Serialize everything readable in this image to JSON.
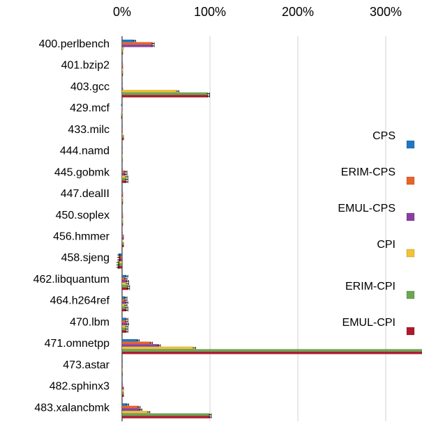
{
  "chart_data": {
    "type": "bar",
    "orientation": "horizontal",
    "xlim": [
      0,
      3.3
    ],
    "x_ticks": [
      {
        "value": 0,
        "label": "0%"
      },
      {
        "value": 1,
        "label": "100%"
      },
      {
        "value": 2,
        "label": "200%"
      },
      {
        "value": 3,
        "label": "300%"
      }
    ],
    "categories": [
      "400.perlbench",
      "401.bzip2",
      "403.gcc",
      "429.mcf",
      "433.milc",
      "444.namd",
      "445.gobmk",
      "447.dealII",
      "450.soplex",
      "456.hmmer",
      "458.sjeng",
      "462.libquantum",
      "464.h264ref",
      "470.lbm",
      "471.omnetpp",
      "473.astar",
      "482.sphinx3",
      "483.xalancbmk"
    ],
    "legend_position": "right",
    "series": [
      {
        "name": "CPS",
        "color": "#1f77c4",
        "values": [
          0.14,
          0.005,
          0.005,
          -0.01,
          0.0,
          0.0,
          0.005,
          0.005,
          0.005,
          0.005,
          -0.04,
          0.05,
          0.04,
          0.05,
          0.18,
          0.0,
          0.005,
          0.06
        ]
      },
      {
        "name": "ERIM-CPS",
        "color": "#e8642a",
        "values": [
          0.35,
          0.01,
          0.005,
          -0.005,
          0.005,
          0.0,
          0.04,
          0.01,
          0.01,
          0.02,
          -0.04,
          0.04,
          0.04,
          0.05,
          0.33,
          0.005,
          0.01,
          0.19
        ]
      },
      {
        "name": "EMUL-CPS",
        "color": "#8a3fa0",
        "values": [
          0.35,
          0.01,
          0.01,
          -0.005,
          0.005,
          0.0,
          0.04,
          0.01,
          0.01,
          0.02,
          -0.04,
          0.06,
          0.05,
          0.06,
          0.42,
          0.005,
          0.02,
          0.21
        ]
      },
      {
        "name": "CPI",
        "color": "#f2c233",
        "values": [
          0.02,
          0.01,
          0.63,
          0.005,
          0.01,
          0.005,
          0.05,
          0.01,
          0.01,
          0.01,
          -0.05,
          0.06,
          0.04,
          0.05,
          0.82,
          0.005,
          0.02,
          0.3
        ]
      },
      {
        "name": "ERIM-CPI",
        "color": "#6aa84f",
        "values": [
          0.01,
          0.01,
          0.98,
          -0.01,
          0.02,
          0.0,
          0.05,
          0.01,
          0.01,
          0.02,
          -0.05,
          0.07,
          0.05,
          0.05,
          3.51,
          0.005,
          0.02,
          1.0
        ]
      },
      {
        "name": "EMUL-CPI",
        "color": "#b0182c",
        "values": [
          0.01,
          0.01,
          0.98,
          -0.01,
          0.02,
          0.0,
          0.05,
          0.01,
          0.01,
          0.02,
          -0.05,
          0.07,
          0.05,
          0.05,
          3.51,
          0.005,
          0.02,
          1.0
        ]
      }
    ]
  }
}
